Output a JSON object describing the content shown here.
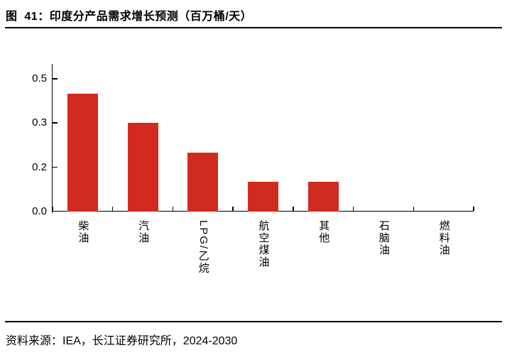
{
  "title": "图  41：印度分产品需求增长预测（百万桶/天）",
  "footer": {
    "source": "资料来源：IEA，长江证券研究所，2024-2030"
  },
  "colors": {
    "bar": "#D12B1F",
    "axis": "#000000",
    "rule": "#000000",
    "text": "#000000"
  },
  "chart_data": {
    "type": "bar",
    "title": "印度分产品需求增长预测",
    "unit": "百万桶/天",
    "categories": [
      "柴油",
      "汽油",
      "LPG/乙烷",
      "航空煤油",
      "其他",
      "石脑油",
      "燃料油"
    ],
    "values": [
      0.4,
      0.3,
      0.2,
      0.1,
      0.1,
      0.0,
      0.0
    ],
    "xlabel": "",
    "ylabel": "",
    "ylim": [
      0,
      0.5
    ],
    "y_ticks": [
      {
        "value": 0.0,
        "label": "0.0"
      },
      {
        "value": 0.15,
        "label": "0.2"
      },
      {
        "value": 0.3,
        "label": "0.3"
      },
      {
        "value": 0.45,
        "label": "0.5"
      }
    ],
    "grid": false,
    "legend": "none",
    "bar_orientation": "vertical"
  }
}
